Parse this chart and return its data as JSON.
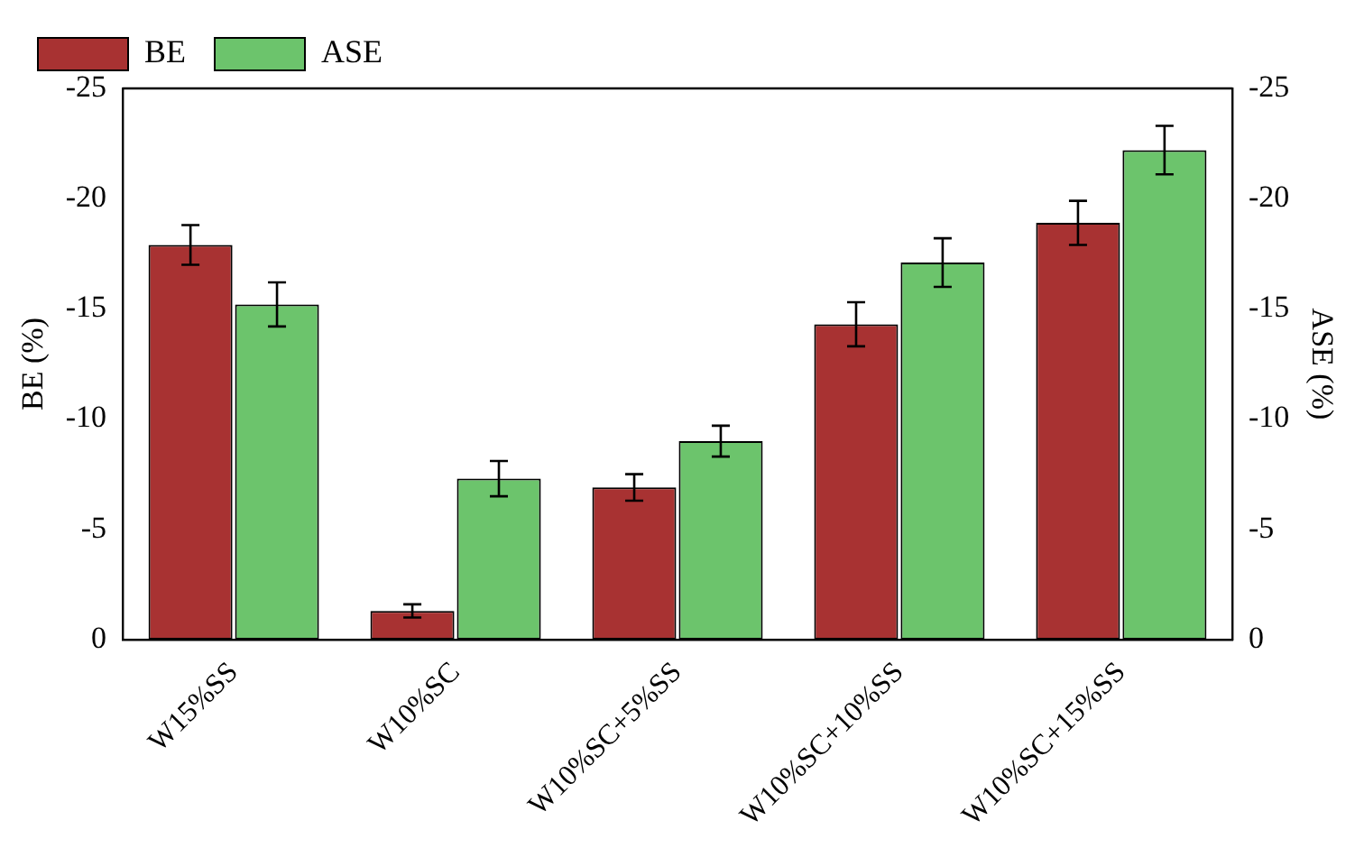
{
  "chart_data": {
    "type": "bar",
    "ylabel": "BE (%)",
    "y2label": "ASE (%)",
    "categories": [
      "W15%SS",
      "W10%SC",
      "W10%SC+5%SS",
      "W10%SC+10%SS",
      "W10%SC+15%SS"
    ],
    "series": [
      {
        "name": "BE",
        "color": "#a83232",
        "values": [
          -17.9,
          -1.3,
          -6.9,
          -14.3,
          -18.9
        ],
        "errors": [
          0.9,
          0.3,
          0.6,
          1.0,
          1.0
        ]
      },
      {
        "name": "ASE",
        "color": "#6cc46c",
        "values": [
          -15.2,
          -7.3,
          -9.0,
          -17.1,
          -22.2
        ],
        "errors": [
          1.0,
          0.8,
          0.7,
          1.1,
          1.1
        ]
      }
    ],
    "ylim": [
      0,
      -25
    ],
    "yticks": [
      0,
      -5,
      -10,
      -15,
      -20,
      -25
    ],
    "y2lim": [
      0,
      -25
    ],
    "y2ticks": [
      0,
      -5,
      -10,
      -15,
      -20,
      -25
    ],
    "grid": false,
    "legend": "top left"
  }
}
